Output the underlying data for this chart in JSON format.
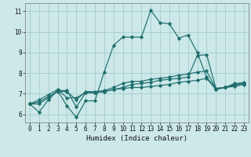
{
  "xlabel": "Humidex (Indice chaleur)",
  "bg_color": "#cce8e8",
  "grid_color": "#aacfcf",
  "line_color": "#1e6e6e",
  "xlim": [
    -0.5,
    23.5
  ],
  "ylim": [
    5.6,
    11.4
  ],
  "xticks": [
    0,
    1,
    2,
    3,
    4,
    5,
    6,
    7,
    8,
    9,
    10,
    11,
    12,
    13,
    14,
    15,
    16,
    17,
    18,
    19,
    20,
    21,
    22,
    23
  ],
  "yticks": [
    6,
    7,
    8,
    9,
    10,
    11
  ],
  "series": [
    [
      6.5,
      6.1,
      6.7,
      7.15,
      6.4,
      5.85,
      6.65,
      6.65,
      8.05,
      9.35,
      9.75,
      9.75,
      9.75,
      11.05,
      10.45,
      10.4,
      9.7,
      9.85,
      9.0,
      7.8,
      7.25,
      7.3,
      7.5,
      7.5
    ],
    [
      6.5,
      6.5,
      6.8,
      7.15,
      7.15,
      6.35,
      7.05,
      7.05,
      7.1,
      7.2,
      7.25,
      7.3,
      7.3,
      7.35,
      7.4,
      7.45,
      7.55,
      7.6,
      7.65,
      7.75,
      7.2,
      7.3,
      7.35,
      7.45
    ],
    [
      6.5,
      6.6,
      6.85,
      7.1,
      7.1,
      6.7,
      7.1,
      7.1,
      7.15,
      7.3,
      7.5,
      7.6,
      7.6,
      7.7,
      7.75,
      7.8,
      7.9,
      7.95,
      8.05,
      8.1,
      7.25,
      7.3,
      7.4,
      7.5
    ],
    [
      6.5,
      6.7,
      6.95,
      7.2,
      6.8,
      6.8,
      7.05,
      7.05,
      7.1,
      7.2,
      7.3,
      7.45,
      7.5,
      7.55,
      7.65,
      7.7,
      7.75,
      7.8,
      8.85,
      8.9,
      7.25,
      7.3,
      7.45,
      7.55
    ]
  ]
}
